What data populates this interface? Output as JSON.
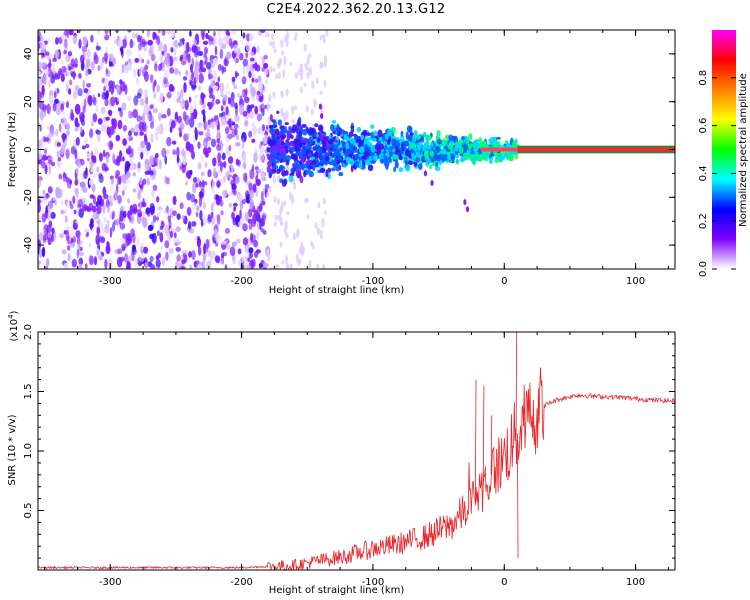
{
  "title": "C2E4.2022.362.20.13.G12",
  "chart_data": [
    {
      "type": "heatmap",
      "xlabel": "Height of straight line (km)",
      "ylabel": "Frequency (Hz)",
      "xlim": [
        -355,
        130
      ],
      "ylim": [
        -50,
        50
      ],
      "x_ticks": [
        -300,
        -200,
        -100,
        0,
        100
      ],
      "y_ticks": [
        -40,
        -20,
        0,
        20,
        40
      ],
      "x_tick_labels": [
        "-300",
        "-200",
        "-100",
        "0",
        "100"
      ],
      "y_tick_labels": [
        "-40",
        "-20",
        "0",
        "20",
        "40"
      ],
      "colorbar": {
        "label": "Normalized spectral amplitude",
        "range": [
          0,
          1
        ],
        "ticks": [
          0.0,
          0.2,
          0.4,
          0.6,
          0.8
        ],
        "tick_labels": [
          "0.0",
          "0.2",
          "0.4",
          "0.6",
          "0.8"
        ],
        "colors": [
          "#ffffff",
          "#7f00ff",
          "#0000ff",
          "#00ffff",
          "#00ff00",
          "#ffff00",
          "#ff8000",
          "#ff0000",
          "#ff00ff"
        ]
      },
      "regions": [
        {
          "x_range": [
            -355,
            -180
          ],
          "description_level": "noise",
          "amplitude": 0.15
        },
        {
          "x_range": [
            -180,
            10
          ],
          "description_level": "signal-spread",
          "amplitude": 0.35
        },
        {
          "x_range": [
            10,
            130
          ],
          "description_level": "steady-line",
          "frequency": 0,
          "amplitude": 0.95
        }
      ]
    },
    {
      "type": "line",
      "xlabel": "Height of straight line (km)",
      "ylabel": "SNR (10 * v/v)",
      "y_multiplier_label": "(x10",
      "y_multiplier_exp": "4",
      "xlim": [
        -355,
        130
      ],
      "ylim": [
        0,
        2.0
      ],
      "x_ticks": [
        -300,
        -200,
        -100,
        0,
        100
      ],
      "y_ticks": [
        0.5,
        1.0,
        1.5,
        2.0
      ],
      "x_tick_labels": [
        "-300",
        "-200",
        "-100",
        "0",
        "100"
      ],
      "y_tick_labels": [
        "0.5",
        "1.0",
        "1.5",
        "2.0"
      ],
      "series": [
        {
          "color": "#e8252a",
          "x": [
            -355,
            -300,
            -250,
            -200,
            -180,
            -160,
            -140,
            -120,
            -100,
            -80,
            -60,
            -40,
            -30,
            -20,
            -10,
            0,
            5,
            10,
            20,
            30,
            40,
            55,
            70,
            90,
            110,
            130
          ],
          "y": [
            0.02,
            0.02,
            0.02,
            0.02,
            0.03,
            0.04,
            0.08,
            0.12,
            0.18,
            0.22,
            0.28,
            0.38,
            0.5,
            0.65,
            0.8,
            0.95,
            1.05,
            1.15,
            1.3,
            1.38,
            1.43,
            1.47,
            1.46,
            1.45,
            1.43,
            1.42
          ]
        }
      ]
    }
  ]
}
